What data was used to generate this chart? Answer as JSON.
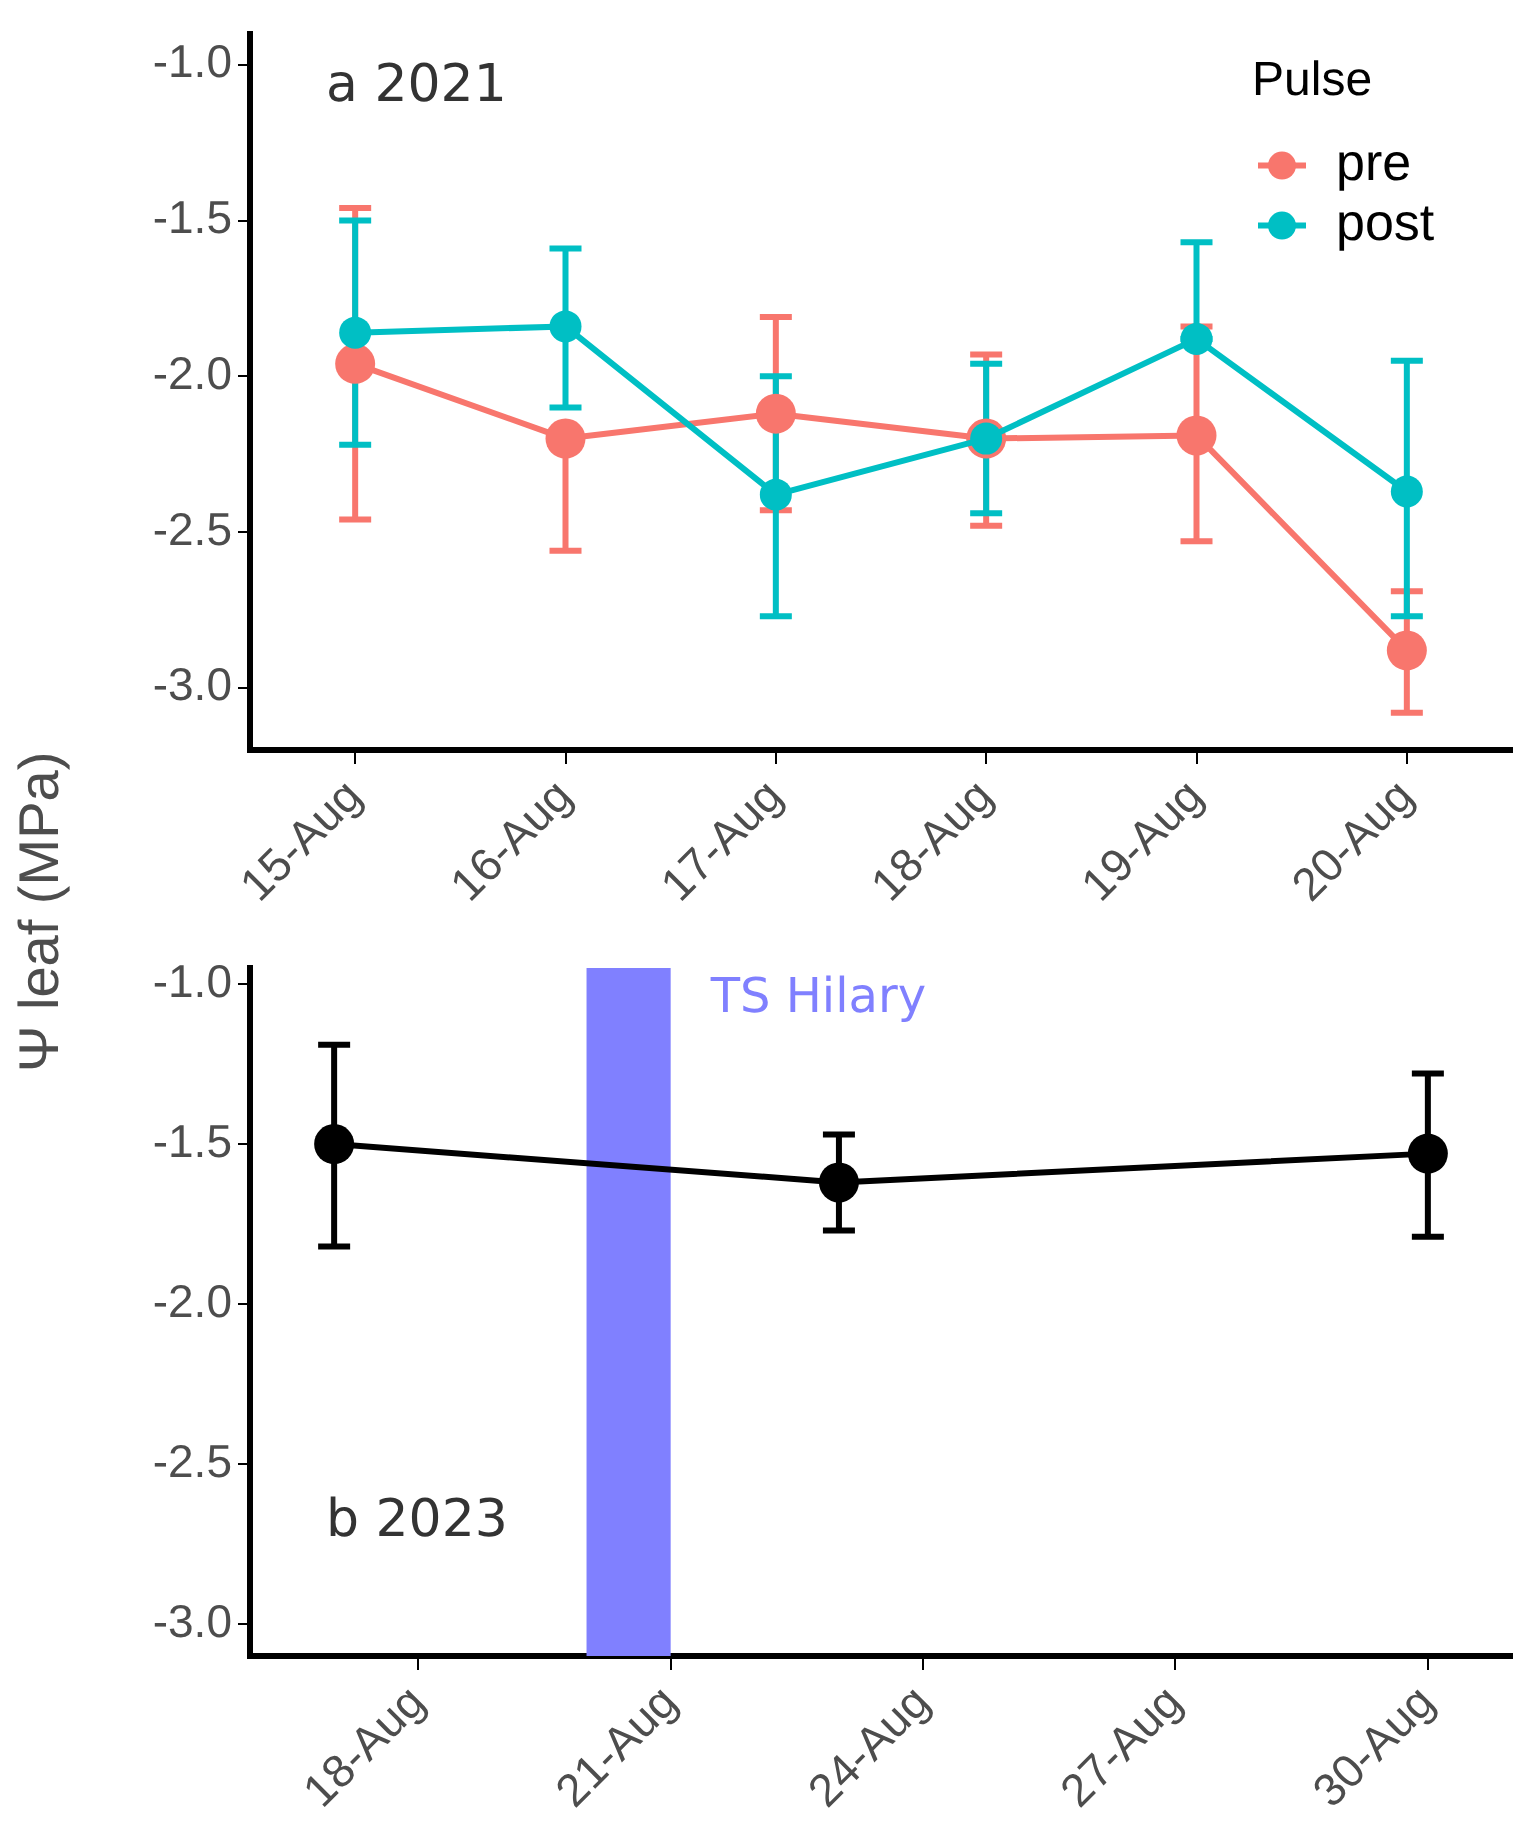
{
  "chart_data": [
    {
      "type": "line",
      "ylabel": "Ψ leaf (MPa)",
      "legend_title": "Pulse",
      "annotations": [
        "a 2021"
      ],
      "categories": [
        "15-Aug",
        "16-Aug",
        "17-Aug",
        "18-Aug",
        "19-Aug",
        "20-Aug"
      ],
      "series": [
        {
          "name": "pre",
          "color": "#f8766d",
          "values": [
            -1.96,
            -2.2,
            -2.12,
            -2.2,
            -2.19,
            -2.88
          ],
          "errors": [
            [
              -2.46,
              -1.46
            ],
            [
              -2.56,
              -2.2
            ],
            [
              -2.43,
              -1.81
            ],
            [
              -2.48,
              -1.93
            ],
            [
              -2.53,
              -1.84
            ],
            [
              -3.08,
              -2.69
            ]
          ]
        },
        {
          "name": "post",
          "color": "#00bfc4",
          "values": [
            -1.86,
            -1.84,
            -2.38,
            -2.2,
            -1.88,
            -2.37
          ],
          "errors": [
            [
              -2.22,
              -1.5
            ],
            [
              -2.1,
              -1.59
            ],
            [
              -2.77,
              -2.0
            ],
            [
              -2.44,
              -1.96
            ],
            [
              -1.88,
              -1.57
            ],
            [
              -2.77,
              -1.95
            ]
          ]
        }
      ],
      "ylim": [
        -3.2,
        -0.9
      ],
      "yticks": [
        {
          "value": -3,
          "label": "-3.0"
        },
        {
          "value": -2.5,
          "label": "-2.5"
        },
        {
          "value": -2,
          "label": "-2.0"
        },
        {
          "value": -1.5,
          "label": "-1.5"
        },
        {
          "value": -1,
          "label": "-1.0"
        }
      ],
      "grid": false,
      "legend": "top right",
      "marker": "circle",
      "line_style": "solid"
    },
    {
      "type": "line",
      "annotations": [
        "b 2023"
      ],
      "x": [
        "--08-17",
        "--08-23",
        "--08-30"
      ],
      "series": [
        {
          "color": "#000000",
          "values": [
            -1.5,
            -1.62,
            -1.53
          ],
          "errors": [
            [
              -1.82,
              -1.19
            ],
            [
              -1.77,
              -1.47
            ],
            [
              -1.79,
              -1.28
            ]
          ]
        }
      ],
      "xlim": [
        "--08-16",
        "--08-31"
      ],
      "xticks": [
        {
          "value": "--08-18",
          "label": "18-Aug"
        },
        {
          "value": "--08-21",
          "label": "21-Aug"
        },
        {
          "value": "--08-24",
          "label": "24-Aug"
        },
        {
          "value": "--08-27",
          "label": "27-Aug"
        },
        {
          "value": "--08-30",
          "label": "30-Aug"
        }
      ],
      "ylim": [
        -3.1,
        -0.95
      ],
      "yticks": [
        {
          "value": -3,
          "label": "-3.0"
        },
        {
          "value": -2.5,
          "label": "-2.5"
        },
        {
          "value": -2,
          "label": "-2.0"
        },
        {
          "value": -1.5,
          "label": "-1.5"
        },
        {
          "value": -1,
          "label": "-1.0"
        }
      ],
      "bands": [
        {
          "axis": "x",
          "from": "--08-20",
          "to": "--08-21",
          "label": "TS Hilary",
          "color": "#8080ff"
        }
      ],
      "grid": false,
      "legend": false,
      "marker": "circle",
      "line_style": "solid"
    }
  ]
}
